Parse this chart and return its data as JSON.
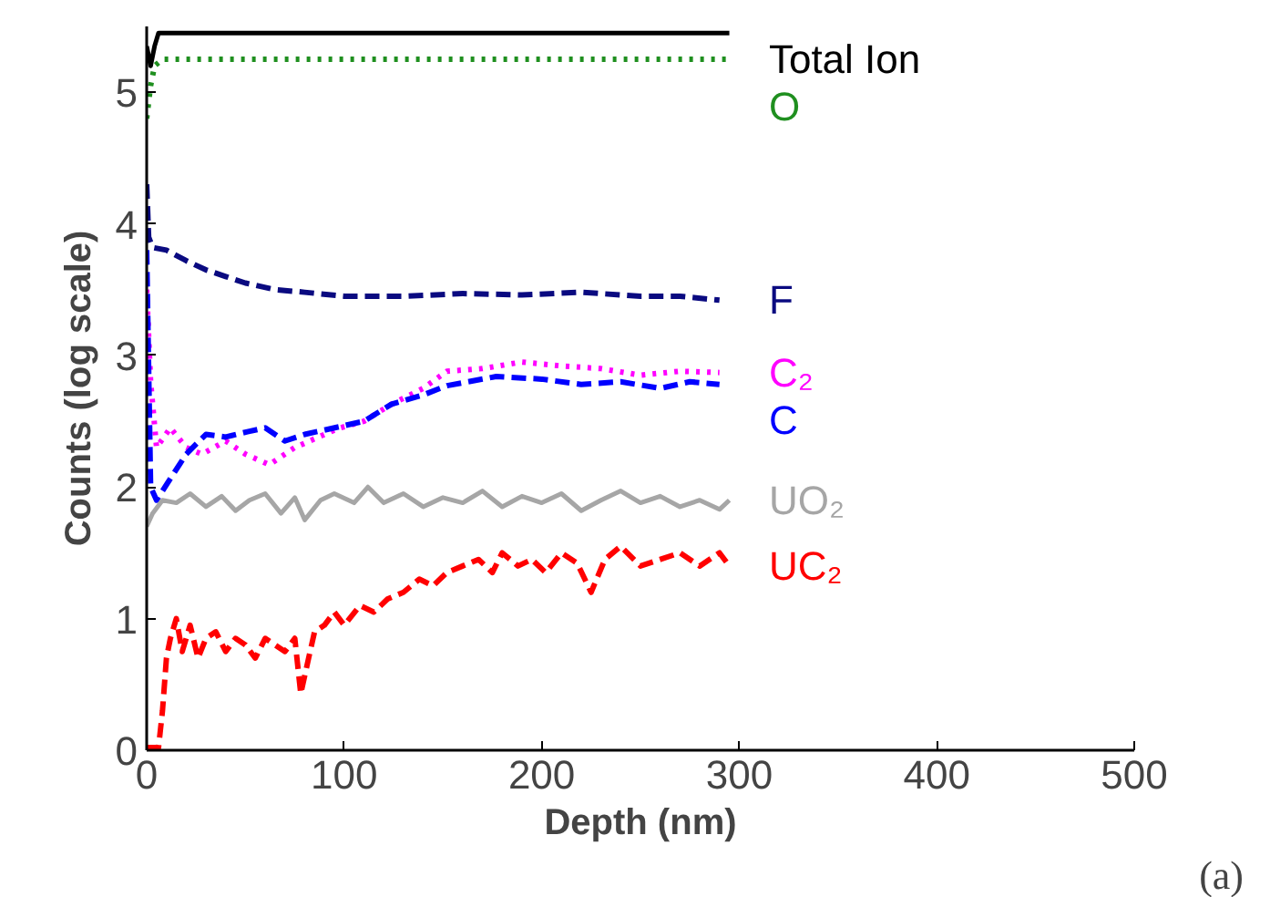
{
  "chart_data": {
    "type": "line",
    "xlabel": "Depth (nm)",
    "ylabel": "Counts (log scale)",
    "xlim": [
      0,
      500
    ],
    "ylim": [
      0,
      5.5
    ],
    "xticks": [
      0,
      100,
      200,
      300,
      400,
      500
    ],
    "yticks": [
      0,
      1,
      2,
      3,
      4,
      5
    ],
    "grid": false,
    "annotations": [
      "(a)"
    ],
    "series": [
      {
        "name": "Total Ion",
        "color": "#000000",
        "line_style": "solid",
        "x": [
          0,
          2,
          4,
          6,
          10,
          100,
          200,
          295
        ],
        "values": [
          5.35,
          5.2,
          5.35,
          5.45,
          5.45,
          5.45,
          5.45,
          5.45
        ]
      },
      {
        "name": "O",
        "color": "#1f8f1f",
        "line_style": "dotted",
        "x": [
          0,
          2,
          4,
          8,
          100,
          200,
          295
        ],
        "values": [
          4.8,
          5.05,
          5.2,
          5.25,
          5.25,
          5.25,
          5.25
        ]
      },
      {
        "name": "F",
        "color": "#0a0a80",
        "line_style": "dashed",
        "x": [
          0,
          1,
          3,
          10,
          20,
          30,
          40,
          50,
          65,
          80,
          100,
          130,
          160,
          190,
          220,
          250,
          270,
          290
        ],
        "values": [
          4.3,
          3.9,
          3.82,
          3.8,
          3.72,
          3.65,
          3.6,
          3.55,
          3.5,
          3.48,
          3.45,
          3.45,
          3.47,
          3.46,
          3.48,
          3.45,
          3.45,
          3.42
        ]
      },
      {
        "name": "C₂",
        "color": "#ff00ff",
        "line_style": "dotted",
        "x": [
          0,
          2,
          5,
          12,
          20,
          28,
          40,
          50,
          62,
          75,
          90,
          98,
          110,
          124,
          140,
          152,
          170,
          190,
          210,
          230,
          250,
          270,
          290
        ],
        "values": [
          3.5,
          2.8,
          2.3,
          2.45,
          2.3,
          2.25,
          2.35,
          2.25,
          2.17,
          2.3,
          2.4,
          2.45,
          2.5,
          2.63,
          2.75,
          2.88,
          2.9,
          2.95,
          2.92,
          2.9,
          2.85,
          2.88,
          2.87
        ]
      },
      {
        "name": "C",
        "color": "#0000ff",
        "line_style": "dashed",
        "x": [
          0,
          2,
          5,
          11,
          20,
          30,
          40,
          51,
          60,
          70,
          80,
          98,
          110,
          124,
          140,
          152,
          177,
          200,
          220,
          240,
          260,
          275,
          290
        ],
        "values": [
          3.8,
          2.0,
          1.9,
          2.04,
          2.25,
          2.4,
          2.38,
          2.42,
          2.45,
          2.35,
          2.4,
          2.46,
          2.5,
          2.63,
          2.7,
          2.77,
          2.84,
          2.82,
          2.78,
          2.8,
          2.75,
          2.8,
          2.78
        ]
      },
      {
        "name": "UO₂",
        "color": "#a6a6a6",
        "line_style": "solid",
        "x": [
          0,
          3,
          8,
          15,
          22,
          30,
          38,
          45,
          52,
          60,
          68,
          75,
          80,
          88,
          95,
          105,
          112,
          120,
          130,
          140,
          150,
          160,
          170,
          180,
          190,
          200,
          210,
          220,
          230,
          240,
          250,
          260,
          270,
          280,
          290,
          295
        ],
        "values": [
          1.7,
          1.8,
          1.9,
          1.88,
          1.95,
          1.85,
          1.93,
          1.82,
          1.9,
          1.95,
          1.8,
          1.92,
          1.75,
          1.9,
          1.95,
          1.88,
          2.0,
          1.88,
          1.95,
          1.85,
          1.92,
          1.88,
          1.97,
          1.85,
          1.93,
          1.88,
          1.95,
          1.82,
          1.9,
          1.97,
          1.88,
          1.93,
          1.85,
          1.9,
          1.83,
          1.9
        ]
      },
      {
        "name": "UC₂",
        "color": "#ff0000",
        "line_style": "dashed",
        "x": [
          0,
          6,
          8,
          10,
          12,
          15,
          18,
          22,
          26,
          30,
          35,
          40,
          45,
          50,
          55,
          60,
          65,
          70,
          75,
          78,
          82,
          85,
          90,
          95,
          100,
          108,
          115,
          122,
          130,
          138,
          145,
          152,
          160,
          168,
          175,
          180,
          188,
          195,
          202,
          210,
          218,
          225,
          232,
          240,
          250,
          260,
          270,
          280,
          290,
          295
        ],
        "values": [
          0.02,
          0.02,
          0.3,
          0.7,
          0.85,
          1.0,
          0.75,
          0.95,
          0.7,
          0.85,
          0.9,
          0.75,
          0.85,
          0.8,
          0.7,
          0.85,
          0.8,
          0.75,
          0.85,
          0.43,
          0.7,
          0.9,
          0.95,
          1.05,
          0.95,
          1.1,
          1.05,
          1.15,
          1.2,
          1.3,
          1.25,
          1.35,
          1.4,
          1.45,
          1.35,
          1.5,
          1.4,
          1.45,
          1.35,
          1.5,
          1.42,
          1.2,
          1.45,
          1.55,
          1.4,
          1.45,
          1.5,
          1.4,
          1.5,
          1.4
        ]
      }
    ]
  }
}
